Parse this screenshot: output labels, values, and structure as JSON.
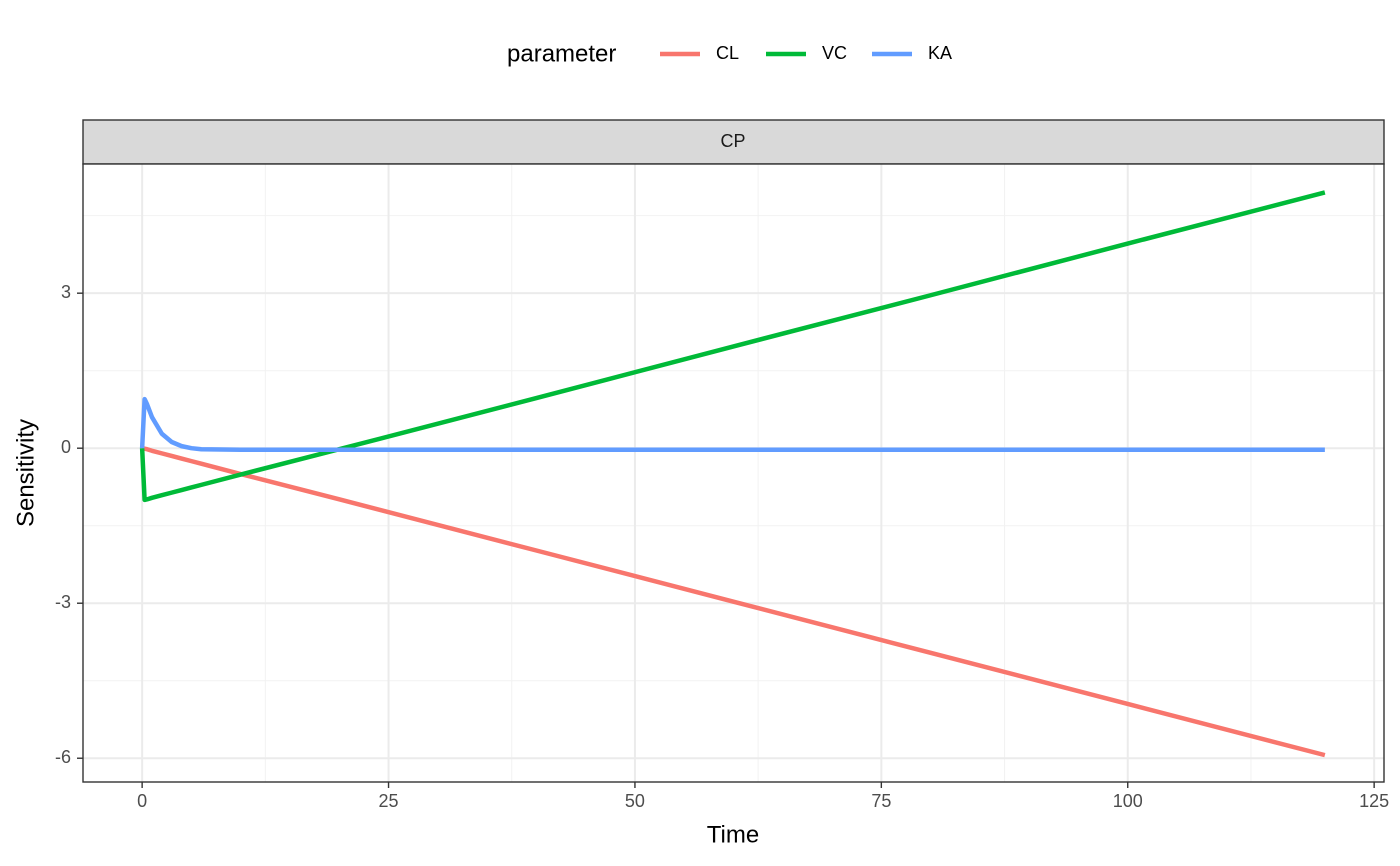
{
  "chart_data": {
    "type": "line",
    "facet": "CP",
    "legend_title": "parameter",
    "legend_position": "top",
    "x_label": "Time",
    "y_label": "Sensitivity",
    "x": [
      0,
      0.25,
      0.5,
      1,
      2,
      3,
      4,
      5,
      6,
      10,
      20,
      40,
      60,
      80,
      100,
      120
    ],
    "series": [
      {
        "name": "CL",
        "color": "#F8766D",
        "values": [
          0,
          -0.01,
          -0.02,
          -0.05,
          -0.1,
          -0.15,
          -0.2,
          -0.25,
          -0.3,
          -0.5,
          -0.99,
          -1.98,
          -2.97,
          -3.96,
          -4.95,
          -5.94
        ]
      },
      {
        "name": "VC",
        "color": "#00BA38",
        "values": [
          0,
          -1,
          -0.99,
          -0.96,
          -0.91,
          -0.86,
          -0.81,
          -0.76,
          -0.71,
          -0.51,
          -0.02,
          0.97,
          1.97,
          2.96,
          3.96,
          4.95
        ]
      },
      {
        "name": "KA",
        "color": "#619CFF",
        "values": [
          0,
          0.95,
          0.85,
          0.6,
          0.28,
          0.12,
          0.04,
          0,
          -0.02,
          -0.03,
          -0.03,
          -0.03,
          -0.03,
          -0.03,
          -0.03,
          -0.03
        ]
      }
    ],
    "xlim": [
      -6,
      126
    ],
    "xticks": [
      0,
      25,
      50,
      75,
      100,
      125
    ],
    "ylim": [
      -6.46,
      5.5
    ],
    "yticks": [
      -6,
      -3,
      0,
      3
    ],
    "grid": true
  }
}
